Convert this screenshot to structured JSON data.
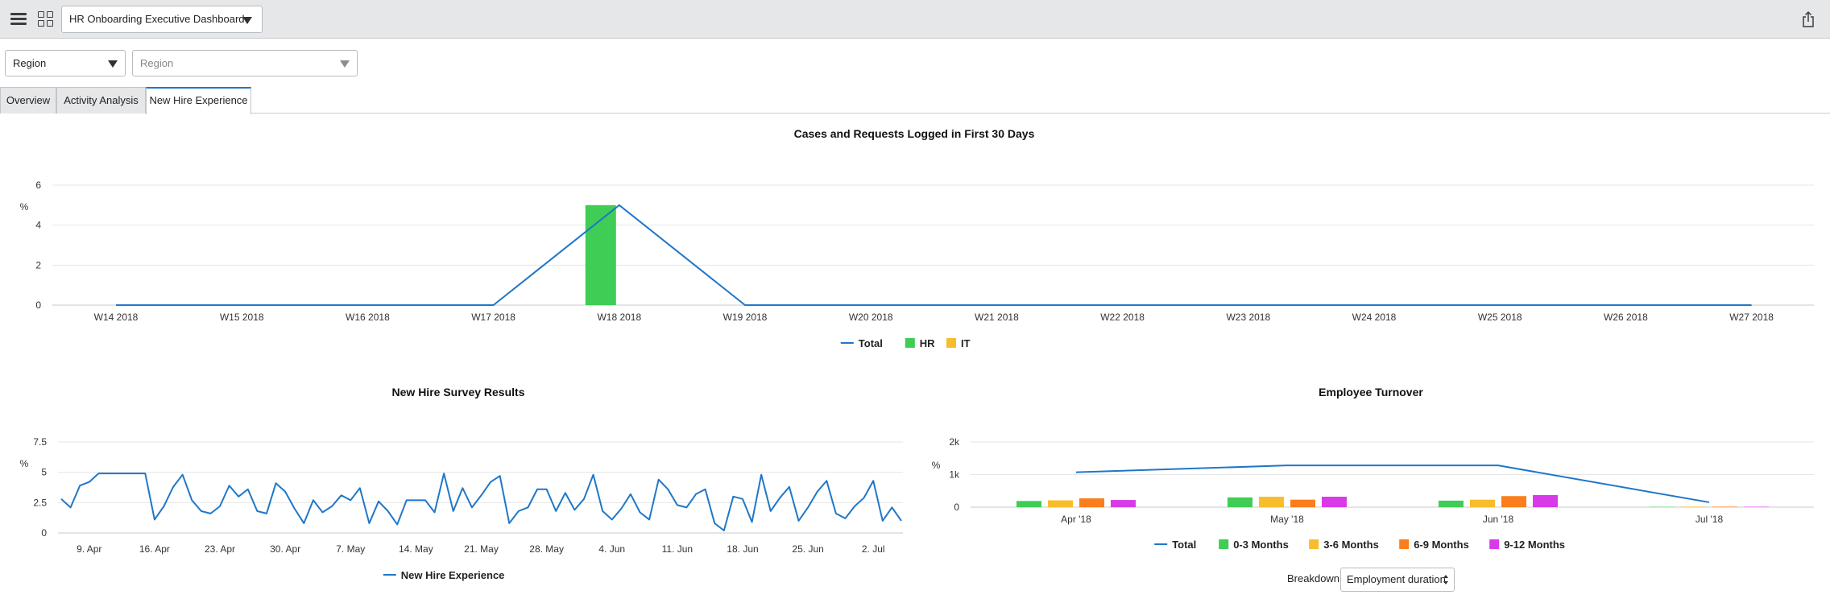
{
  "header": {
    "dashboard_name": "HR Onboarding Executive Dashboard"
  },
  "filters": {
    "region_label": "Region",
    "region_placeholder": "Region"
  },
  "tabs": [
    {
      "label": "Overview"
    },
    {
      "label": "Activity Analysis"
    },
    {
      "label": "New Hire Experience"
    }
  ],
  "active_tab": "New Hire Experience",
  "colors": {
    "total": "#1f77c8",
    "hr": "#3fcd55",
    "it": "#f7bd2d",
    "m0_3": "#3fcd55",
    "m3_6": "#f7bd2d",
    "m6_9": "#fa7e1d",
    "m9_12": "#d93ae8",
    "grid": "#e6e6e6"
  },
  "breakdown": {
    "label": "Breakdown",
    "selected": "Employment duration"
  },
  "chart_data": [
    {
      "type": "bar",
      "title": "Cases and Requests Logged in First 30 Days",
      "ylabel": "%",
      "ylim": [
        0,
        6
      ],
      "yticks": [
        "0",
        "2",
        "4",
        "6"
      ],
      "grid": true,
      "legend_position": "bottom",
      "categories": [
        "W14 2018",
        "W15 2018",
        "W16 2018",
        "W17 2018",
        "W18 2018",
        "W19 2018",
        "W20 2018",
        "W21 2018",
        "W22 2018",
        "W23 2018",
        "W24 2018",
        "W25 2018",
        "W26 2018",
        "W27 2018"
      ],
      "series": [
        {
          "name": "Total",
          "kind": "line",
          "values": [
            0,
            0,
            0,
            0,
            5,
            0,
            0,
            0,
            0,
            0,
            0,
            0,
            0,
            0
          ]
        },
        {
          "name": "HR",
          "kind": "bar",
          "values": [
            0,
            0,
            0,
            0,
            5,
            0,
            0,
            0,
            0,
            0,
            0,
            0,
            0,
            0
          ]
        },
        {
          "name": "IT",
          "kind": "bar",
          "values": [
            0,
            0,
            0,
            0,
            0,
            0,
            0,
            0,
            0,
            0,
            0,
            0,
            0,
            0
          ]
        }
      ]
    },
    {
      "type": "line",
      "title": "New Hire Survey Results",
      "ylabel": "%",
      "ylim": [
        0,
        7.5
      ],
      "yticks": [
        "0",
        "2.5",
        "5",
        "7.5"
      ],
      "grid": true,
      "legend_position": "bottom",
      "xrange": [
        "2018-04-06",
        "2018-07-05"
      ],
      "xticks": [
        {
          "label": "9. Apr",
          "date": "2018-04-09"
        },
        {
          "label": "16. Apr",
          "date": "2018-04-16"
        },
        {
          "label": "23. Apr",
          "date": "2018-04-23"
        },
        {
          "label": "30. Apr",
          "date": "2018-04-30"
        },
        {
          "label": "7. May",
          "date": "2018-05-07"
        },
        {
          "label": "14. May",
          "date": "2018-05-14"
        },
        {
          "label": "21. May",
          "date": "2018-05-21"
        },
        {
          "label": "28. May",
          "date": "2018-05-28"
        },
        {
          "label": "4. Jun",
          "date": "2018-06-04"
        },
        {
          "label": "11. Jun",
          "date": "2018-06-11"
        },
        {
          "label": "18. Jun",
          "date": "2018-06-18"
        },
        {
          "label": "25. Jun",
          "date": "2018-06-25"
        },
        {
          "label": "2. Jul",
          "date": "2018-07-02"
        }
      ],
      "series": [
        {
          "name": "New Hire Experience",
          "x": [
            "2018-04-06",
            "2018-04-07",
            "2018-04-08",
            "2018-04-09",
            "2018-04-10",
            "2018-04-11",
            "2018-04-12",
            "2018-04-13",
            "2018-04-14",
            "2018-04-15",
            "2018-04-16",
            "2018-04-17",
            "2018-04-18",
            "2018-04-19",
            "2018-04-20",
            "2018-04-21",
            "2018-04-22",
            "2018-04-23",
            "2018-04-24",
            "2018-04-25",
            "2018-04-26",
            "2018-04-27",
            "2018-04-28",
            "2018-04-29",
            "2018-04-30",
            "2018-05-01",
            "2018-05-02",
            "2018-05-03",
            "2018-05-04",
            "2018-05-05",
            "2018-05-06",
            "2018-05-07",
            "2018-05-08",
            "2018-05-09",
            "2018-05-10",
            "2018-05-11",
            "2018-05-12",
            "2018-05-13",
            "2018-05-14",
            "2018-05-15",
            "2018-05-16",
            "2018-05-17",
            "2018-05-18",
            "2018-05-19",
            "2018-05-20",
            "2018-05-21",
            "2018-05-22",
            "2018-05-23",
            "2018-05-24",
            "2018-05-25",
            "2018-05-26",
            "2018-05-27",
            "2018-05-28",
            "2018-05-29",
            "2018-05-30",
            "2018-05-31",
            "2018-06-01",
            "2018-06-02",
            "2018-06-03",
            "2018-06-04",
            "2018-06-05",
            "2018-06-06",
            "2018-06-07",
            "2018-06-08",
            "2018-06-09",
            "2018-06-10",
            "2018-06-11",
            "2018-06-12",
            "2018-06-13",
            "2018-06-14",
            "2018-06-15",
            "2018-06-16",
            "2018-06-17",
            "2018-06-18",
            "2018-06-19",
            "2018-06-20",
            "2018-06-21",
            "2018-06-22",
            "2018-06-23",
            "2018-06-24",
            "2018-06-25",
            "2018-06-26",
            "2018-06-27",
            "2018-06-28",
            "2018-06-29",
            "2018-06-30",
            "2018-07-01",
            "2018-07-02",
            "2018-07-03",
            "2018-07-04",
            "2018-07-05"
          ],
          "values": [
            2.8,
            2.1,
            3.9,
            4.2,
            4.9,
            4.9,
            4.9,
            4.9,
            4.9,
            4.9,
            1.1,
            2.2,
            3.8,
            4.8,
            2.7,
            1.8,
            1.6,
            2.2,
            3.9,
            3.0,
            3.6,
            1.8,
            1.6,
            4.1,
            3.4,
            2.0,
            0.8,
            2.7,
            1.7,
            2.2,
            3.1,
            2.7,
            3.7,
            0.8,
            2.6,
            1.8,
            0.7,
            2.7,
            2.7,
            2.7,
            1.7,
            4.9,
            1.8,
            3.7,
            2.1,
            3.1,
            4.2,
            4.7,
            0.8,
            1.8,
            2.1,
            3.6,
            3.6,
            1.8,
            3.3,
            1.9,
            2.8,
            4.8,
            1.8,
            1.1,
            2.0,
            3.2,
            1.7,
            1.1,
            4.4,
            3.6,
            2.3,
            2.1,
            3.2,
            3.6,
            0.8,
            0.2,
            3.0,
            2.8,
            0.9,
            4.8,
            1.8,
            2.9,
            3.8,
            1.0,
            2.1,
            3.4,
            4.3,
            1.6,
            1.2,
            2.2,
            2.9,
            4.3,
            1.0,
            2.1,
            1.0
          ]
        }
      ]
    },
    {
      "type": "bar",
      "title": "Employee Turnover",
      "ylabel": "%",
      "ylim": [
        0,
        2000
      ],
      "yticks": [
        "0",
        "1k",
        "2k"
      ],
      "grid": true,
      "legend_position": "bottom",
      "categories": [
        "Apr '18",
        "May '18",
        "Jun '18",
        "Jul '18"
      ],
      "series": [
        {
          "name": "Total",
          "kind": "line",
          "values": [
            1070,
            1280,
            1280,
            150
          ]
        },
        {
          "name": "0-3 Months",
          "kind": "bar",
          "values": [
            190,
            300,
            200,
            10
          ]
        },
        {
          "name": "3-6 Months",
          "kind": "bar",
          "values": [
            210,
            320,
            230,
            15
          ]
        },
        {
          "name": "6-9 Months",
          "kind": "bar",
          "values": [
            270,
            230,
            340,
            15
          ]
        },
        {
          "name": "9-12 Months",
          "kind": "bar",
          "values": [
            220,
            320,
            370,
            12
          ]
        }
      ]
    }
  ]
}
